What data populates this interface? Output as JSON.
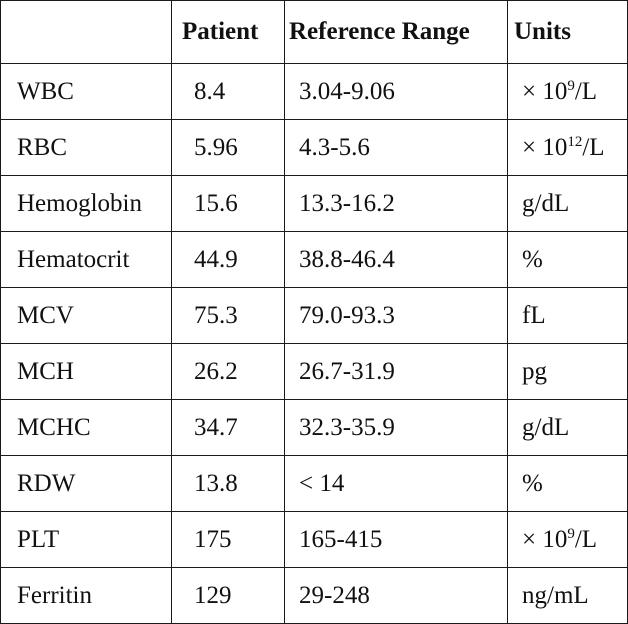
{
  "table": {
    "headers": [
      "",
      "Patient",
      "Reference Range",
      "Units"
    ],
    "rows": [
      {
        "analyte": "WBC",
        "patient": "8.4",
        "range": "3.04-9.06",
        "unit_pre": "× 10",
        "unit_sup": "9",
        "unit_post": "/L"
      },
      {
        "analyte": "RBC",
        "patient": "5.96",
        "range": "4.3-5.6",
        "unit_pre": "× 10",
        "unit_sup": "12",
        "unit_post": "/L"
      },
      {
        "analyte": "Hemoglobin",
        "patient": "15.6",
        "range": "13.3-16.2",
        "unit_pre": "g/dL",
        "unit_sup": "",
        "unit_post": ""
      },
      {
        "analyte": "Hematocrit",
        "patient": "44.9",
        "range": "38.8-46.4",
        "unit_pre": "%",
        "unit_sup": "",
        "unit_post": ""
      },
      {
        "analyte": "MCV",
        "patient": "75.3",
        "range": "79.0-93.3",
        "unit_pre": "fL",
        "unit_sup": "",
        "unit_post": ""
      },
      {
        "analyte": "MCH",
        "patient": "26.2",
        "range": "26.7-31.9",
        "unit_pre": "pg",
        "unit_sup": "",
        "unit_post": ""
      },
      {
        "analyte": "MCHC",
        "patient": "34.7",
        "range": "32.3-35.9",
        "unit_pre": "g/dL",
        "unit_sup": "",
        "unit_post": ""
      },
      {
        "analyte": "RDW",
        "patient": "13.8",
        "range": "< 14",
        "unit_pre": "%",
        "unit_sup": "",
        "unit_post": ""
      },
      {
        "analyte": "PLT",
        "patient": "175",
        "range": "165-415",
        "unit_pre": "× 10",
        "unit_sup": "9",
        "unit_post": "/L"
      },
      {
        "analyte": "Ferritin",
        "patient": "129",
        "range": "29-248",
        "unit_pre": "ng/mL",
        "unit_sup": "",
        "unit_post": ""
      }
    ]
  }
}
